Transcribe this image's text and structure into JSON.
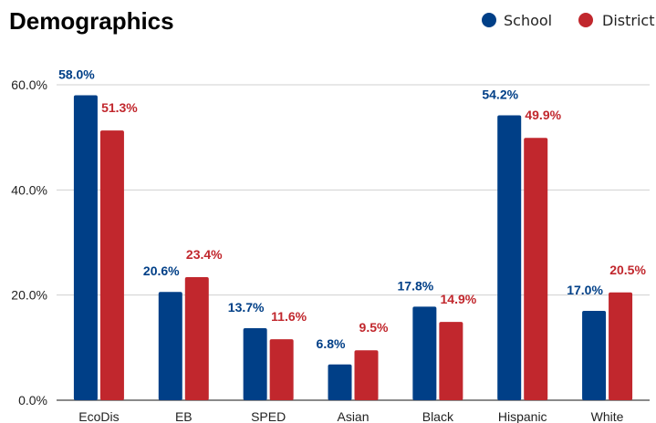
{
  "colors": {
    "school": "#003f87",
    "district": "#c1272d"
  },
  "chart_data": {
    "type": "bar",
    "title": "Demographics",
    "categories": [
      "EcoDis",
      "EB",
      "SPED",
      "Asian",
      "Black",
      "Hispanic",
      "White"
    ],
    "series": [
      {
        "name": "School",
        "values": [
          58.0,
          20.6,
          13.7,
          6.8,
          17.8,
          54.2,
          17.0
        ],
        "labels": [
          "58.0%",
          "20.6%",
          "13.7%",
          "6.8%",
          "17.8%",
          "54.2%",
          "17.0%"
        ]
      },
      {
        "name": "District",
        "values": [
          51.3,
          23.4,
          11.6,
          9.5,
          14.9,
          49.9,
          20.5
        ],
        "labels": [
          "51.3%",
          "23.4%",
          "11.6%",
          "9.5%",
          "14.9%",
          "49.9%",
          "20.5%"
        ]
      }
    ],
    "yticks": [
      0,
      20,
      40,
      60
    ],
    "ytick_labels": [
      "0.0%",
      "20.0%",
      "40.0%",
      "60.0%"
    ],
    "ylim": [
      0,
      60
    ],
    "grid": true,
    "legend_position": "top-right"
  }
}
